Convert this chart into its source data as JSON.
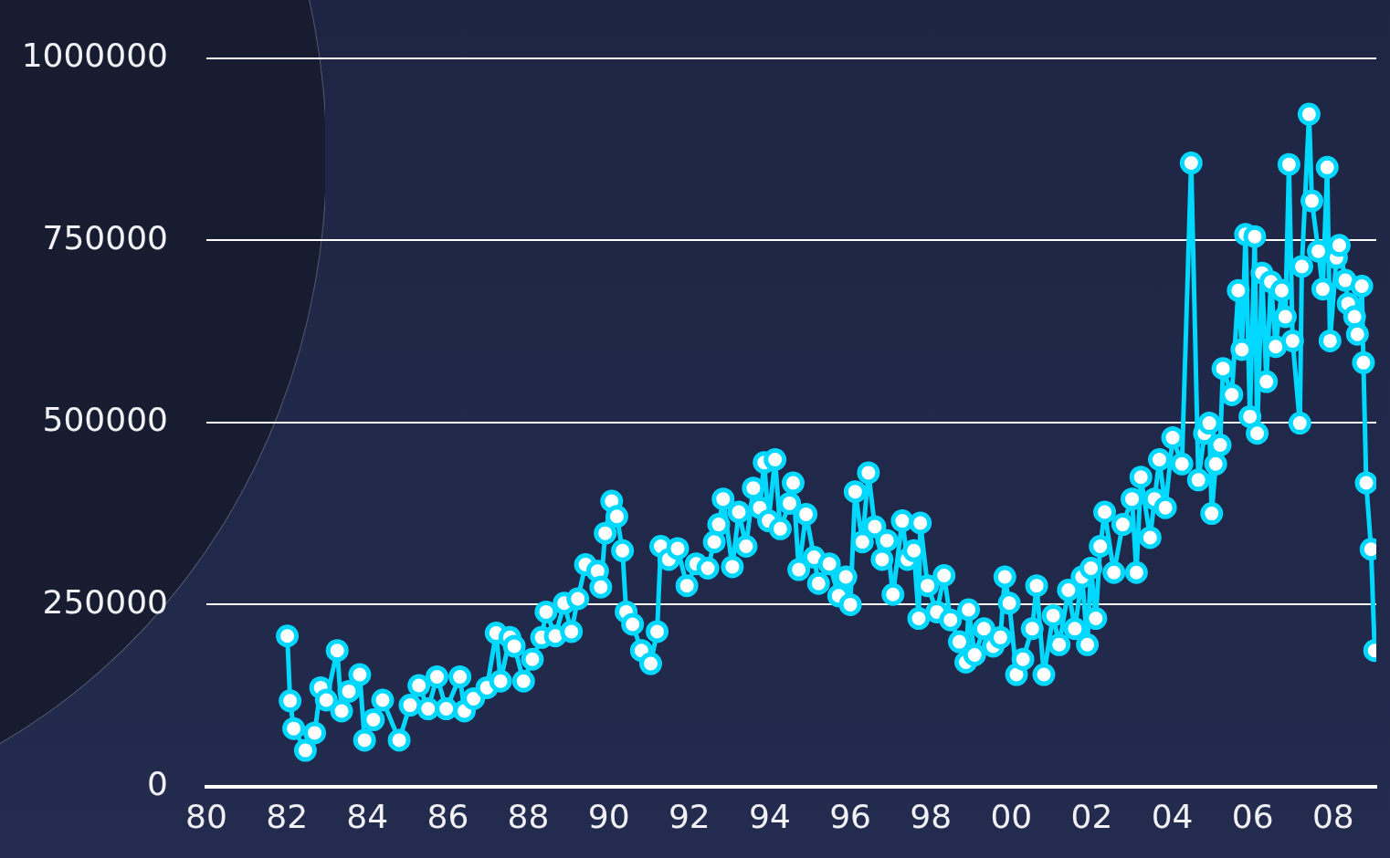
{
  "chart_data": {
    "type": "line",
    "x": [
      1982.01,
      1982.08,
      1982.17,
      1982.46,
      1982.69,
      1982.84,
      1982.98,
      1983.25,
      1983.36,
      1983.54,
      1983.81,
      1983.93,
      1984.15,
      1984.38,
      1984.79,
      1985.06,
      1985.28,
      1985.51,
      1985.73,
      1985.96,
      1986.3,
      1986.41,
      1986.64,
      1986.97,
      1987.2,
      1987.31,
      1987.54,
      1987.65,
      1987.88,
      1988.1,
      1988.33,
      1988.44,
      1988.67,
      1988.89,
      1989.07,
      1989.23,
      1989.42,
      1989.72,
      1989.8,
      1989.91,
      1990.07,
      1990.2,
      1990.34,
      1990.43,
      1990.59,
      1990.81,
      1991.04,
      1991.2,
      1991.29,
      1991.49,
      1991.71,
      1991.94,
      1992.17,
      1992.46,
      1992.62,
      1992.73,
      1992.84,
      1993.07,
      1993.23,
      1993.41,
      1993.59,
      1993.75,
      1993.86,
      1993.97,
      1994.13,
      1994.26,
      1994.49,
      1994.58,
      1994.72,
      1994.9,
      1995.1,
      1995.21,
      1995.48,
      1995.71,
      1995.89,
      1996.0,
      1996.12,
      1996.3,
      1996.45,
      1996.61,
      1996.79,
      1996.91,
      1997.06,
      1997.29,
      1997.42,
      1997.58,
      1997.7,
      1997.74,
      1997.92,
      1998.15,
      1998.33,
      1998.49,
      1998.71,
      1998.87,
      1998.94,
      1999.09,
      1999.32,
      1999.55,
      1999.73,
      1999.84,
      1999.95,
      2000.13,
      2000.29,
      2000.52,
      2000.63,
      2000.81,
      2001.04,
      2001.19,
      2001.42,
      2001.58,
      2001.76,
      2001.89,
      2001.98,
      2002.1,
      2002.21,
      2002.32,
      2002.55,
      2002.77,
      2003.0,
      2003.11,
      2003.22,
      2003.45,
      2003.56,
      2003.68,
      2003.83,
      2004.01,
      2004.24,
      2004.47,
      2004.65,
      2004.8,
      2004.92,
      2004.98,
      2005.08,
      2005.19,
      2005.26,
      2005.48,
      2005.64,
      2005.73,
      2005.82,
      2005.93,
      2006.05,
      2006.11,
      2006.23,
      2006.34,
      2006.45,
      2006.57,
      2006.72,
      2006.81,
      2006.9,
      2006.99,
      2007.17,
      2007.22,
      2007.4,
      2007.47,
      2007.63,
      2007.74,
      2007.85,
      2007.92,
      2008.08,
      2008.15,
      2008.3,
      2008.37,
      2008.53,
      2008.6,
      2008.71,
      2008.75,
      2008.82,
      2008.94,
      2009.03
    ],
    "series": [
      {
        "color": "#00d8ff",
        "values": [
          207000,
          118000,
          80000,
          50000,
          74000,
          136000,
          119000,
          187000,
          104000,
          131000,
          154000,
          64000,
          92000,
          119000,
          64000,
          112000,
          139000,
          107000,
          151000,
          107000,
          151000,
          104000,
          121000,
          136000,
          211000,
          145000,
          205000,
          193000,
          145000,
          175000,
          205000,
          240000,
          207000,
          252000,
          213000,
          258000,
          305000,
          296000,
          274000,
          348000,
          392000,
          371000,
          324000,
          240000,
          223000,
          187000,
          169000,
          213000,
          330000,
          312000,
          327000,
          276000,
          306000,
          300000,
          336000,
          360000,
          395000,
          302000,
          377000,
          330000,
          410000,
          383000,
          445000,
          365000,
          449000,
          354000,
          389000,
          417000,
          298000,
          374000,
          315000,
          279000,
          306000,
          262000,
          288000,
          250000,
          405000,
          336000,
          431000,
          357000,
          312000,
          338000,
          264000,
          365000,
          312000,
          324000,
          231000,
          362000,
          276000,
          240000,
          290000,
          229000,
          199000,
          171000,
          243000,
          181000,
          217000,
          193000,
          205000,
          288000,
          252000,
          154000,
          175000,
          217000,
          276000,
          154000,
          235000,
          195000,
          270000,
          217000,
          288000,
          195000,
          300000,
          231000,
          330000,
          377000,
          294000,
          360000,
          395000,
          294000,
          425000,
          342000,
          395000,
          449000,
          383000,
          479000,
          443000,
          856000,
          421000,
          485000,
          499000,
          375000,
          443000,
          469000,
          574000,
          538000,
          681000,
          600000,
          758000,
          508000,
          755000,
          485000,
          705000,
          556000,
          693000,
          604000,
          681000,
          645000,
          854000,
          612000,
          499000,
          714000,
          923000,
          804000,
          735000,
          683000,
          850000,
          612000,
          726000,
          743000,
          695000,
          663000,
          645000,
          621000,
          687000,
          582000,
          417000,
          326000,
          187000
        ]
      }
    ],
    "xlim": [
      1980,
      2009.07
    ],
    "xticks": [
      {
        "value": 1980,
        "label": "80"
      },
      {
        "value": 1982,
        "label": "82"
      },
      {
        "value": 1984,
        "label": "84"
      },
      {
        "value": 1986,
        "label": "86"
      },
      {
        "value": 1988,
        "label": "88"
      },
      {
        "value": 1990,
        "label": "90"
      },
      {
        "value": 1992,
        "label": "92"
      },
      {
        "value": 1994,
        "label": "94"
      },
      {
        "value": 1996,
        "label": "96"
      },
      {
        "value": 1998,
        "label": "98"
      },
      {
        "value": 2000,
        "label": "00"
      },
      {
        "value": 2002,
        "label": "02"
      },
      {
        "value": 2004,
        "label": "04"
      },
      {
        "value": 2006,
        "label": "06"
      },
      {
        "value": 2008,
        "label": "08"
      }
    ],
    "ylim": [
      0,
      1000000
    ],
    "yticks": [
      0,
      250000,
      500000,
      750000,
      1000000
    ],
    "grid": "y",
    "legend": false,
    "marker": "circle",
    "line_style": "solid"
  }
}
